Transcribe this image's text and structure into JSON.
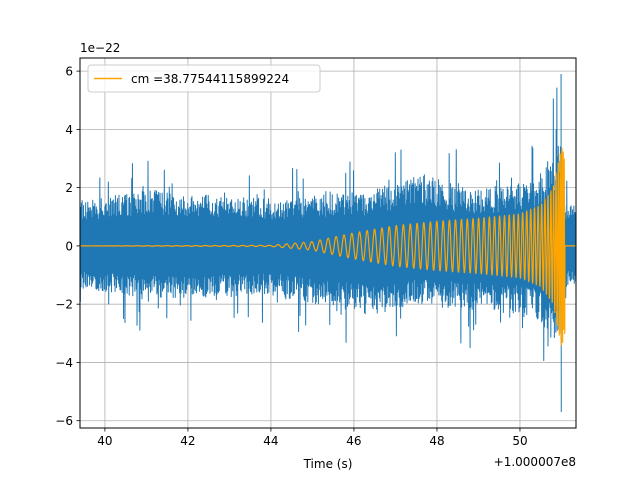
{
  "chart_data": {
    "type": "line",
    "xlabel": "Time (s)",
    "ylabel": "",
    "x_offset_label": "+1.000007e8",
    "y_scale_label": "1e−22",
    "xlim": [
      39.4,
      51.35
    ],
    "ylim": [
      -6.25,
      6.45
    ],
    "x_ticks": [
      40,
      42,
      44,
      46,
      48,
      50
    ],
    "x_tick_labels": [
      "40",
      "42",
      "44",
      "46",
      "48",
      "50"
    ],
    "y_ticks": [
      -6,
      -4,
      -2,
      0,
      2,
      4,
      6
    ],
    "y_tick_labels": [
      "−6",
      "−4",
      "−2",
      "0",
      "2",
      "4",
      "6"
    ],
    "grid": true,
    "legend_position": "top-left",
    "series": [
      {
        "name": "",
        "color": "#1f77b4",
        "description_points": {
          "x": [
            39.4,
            41.1,
            42.3,
            44.0,
            45.7,
            46.4,
            47.5,
            48.8,
            50.3,
            50.99,
            51.02,
            51.35
          ],
          "envelope_upper": [
            2.5,
            3.1,
            2.9,
            2.6,
            2.9,
            3.0,
            4.1,
            3.1,
            3.6,
            5.9,
            2.5,
            2.2
          ],
          "envelope_lower": [
            -2.4,
            -3.0,
            -2.9,
            -2.7,
            -3.6,
            -3.8,
            -3.3,
            -3.5,
            -4.0,
            -5.7,
            -2.6,
            -2.3
          ]
        }
      },
      {
        "name": "cm =38.77544115899224",
        "color": "#ffa500",
        "description_points": {
          "x": [
            39.4,
            44.0,
            45.0,
            46.0,
            47.0,
            48.0,
            49.0,
            50.0,
            50.5,
            50.8,
            51.0,
            51.08,
            51.1,
            51.35
          ],
          "amplitude": [
            0.0,
            0.02,
            0.15,
            0.45,
            0.7,
            0.85,
            0.95,
            1.1,
            1.4,
            2.0,
            3.5,
            3.0,
            0.0,
            0.0
          ]
        }
      }
    ]
  }
}
